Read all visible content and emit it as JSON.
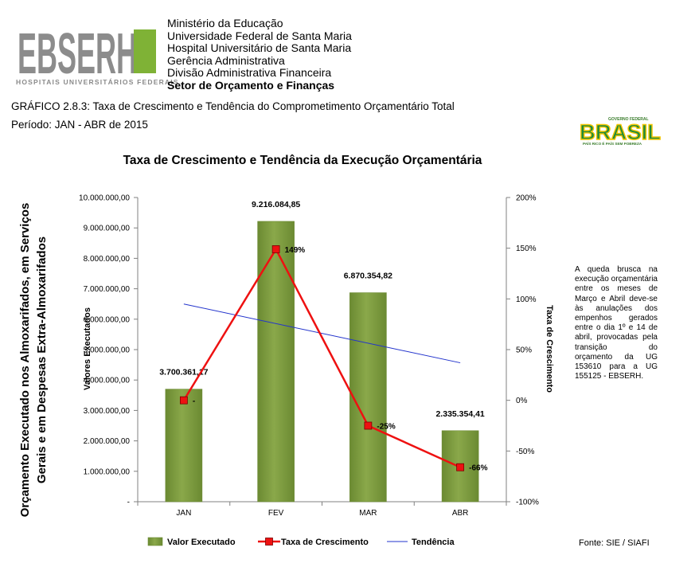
{
  "header": {
    "logo_text": "EBSERH",
    "logo_subtitle": "HOSPITAIS UNIVERSITÁRIOS FEDERAIS",
    "org_lines": [
      "Ministério da Educação",
      "Universidade Federal de Santa Maria",
      "Hospital Universitário de Santa Maria",
      "Gerência Administrativa",
      "Divisão Administrativa Financeira"
    ],
    "org_bold_line": "Setor de Orçamento e Finanças",
    "chart_caption": "GRÁFICO 2.8.3: Taxa de Crescimento e Tendência do Comprometimento Orçamentário Total",
    "period": "Período: JAN - ABR de 2015",
    "brasil_logo_top": "GOVERNO FEDERAL",
    "brasil_logo_text": "BRASIL",
    "brasil_logo_slogan": "PAÍS RICO É PAÍS SEM POBREZA"
  },
  "colors": {
    "bar": "#8aa84a",
    "bar_dark": "#6b8a32",
    "growth_line": "#ee1111",
    "trend_line": "#2233cc"
  },
  "chart_data": {
    "type": "bar",
    "title": "Taxa de Crescimento e Tendência da Execução Orçamentária",
    "categories": [
      "JAN",
      "FEV",
      "MAR",
      "ABR"
    ],
    "series": [
      {
        "name": "Valor Executado",
        "type": "bar",
        "axis": "left",
        "values": [
          3700361.17,
          9216084.85,
          6870354.82,
          2335354.41
        ],
        "labels": [
          "3.700.361,17",
          "9.216.084,85",
          "6.870.354,82",
          "2.335.354,41"
        ]
      },
      {
        "name": "Taxa de Crescimento",
        "type": "line",
        "axis": "right",
        "values": [
          0,
          149,
          -25,
          -66
        ],
        "labels": [
          "-",
          "149%",
          "-25%",
          "-66%"
        ]
      },
      {
        "name": "Tendência",
        "type": "line",
        "axis": "right",
        "values": [
          95,
          77,
          58,
          37
        ]
      }
    ],
    "y_left": {
      "min": 0,
      "max": 10000000,
      "ticks": [
        0,
        1000000,
        2000000,
        3000000,
        4000000,
        5000000,
        6000000,
        7000000,
        8000000,
        9000000,
        10000000
      ],
      "tick_labels": [
        "-",
        "1.000.000,00",
        "2.000.000,00",
        "3.000.000,00",
        "4.000.000,00",
        "5.000.000,00",
        "6.000.000,00",
        "7.000.000,00",
        "8.000.000,00",
        "9.000.000,00",
        "10.000.000,00"
      ],
      "label": "Valores Executados"
    },
    "y_right": {
      "min": -100,
      "max": 200,
      "ticks": [
        -100,
        -50,
        0,
        50,
        100,
        150,
        200
      ],
      "tick_labels": [
        "-100%",
        "-50%",
        "0%",
        "50%",
        "100%",
        "150%",
        "200%"
      ],
      "label": "Taxa de Crescimento"
    },
    "outer_ylabel_line1": "Orçamento Executado nos Almoxarifados, em Serviços",
    "outer_ylabel_line2": "Gerais e em Despesas Extra-Almoxarifados",
    "legend": [
      "Valor Executado",
      "Taxa de Crescimento",
      "Tendência"
    ],
    "legend_position": "bottom",
    "grid": false
  },
  "note": "A queda brusca na execução orçamentária entre os meses de Março e Abril deve-se às anulações dos empenhos gerados entre o dia 1º e 14 de abril, provocadas pela transição do orçamento da UG 153610 para a UG 155125 - EBSERH.",
  "source": "Fonte: SIE / SIAFI"
}
